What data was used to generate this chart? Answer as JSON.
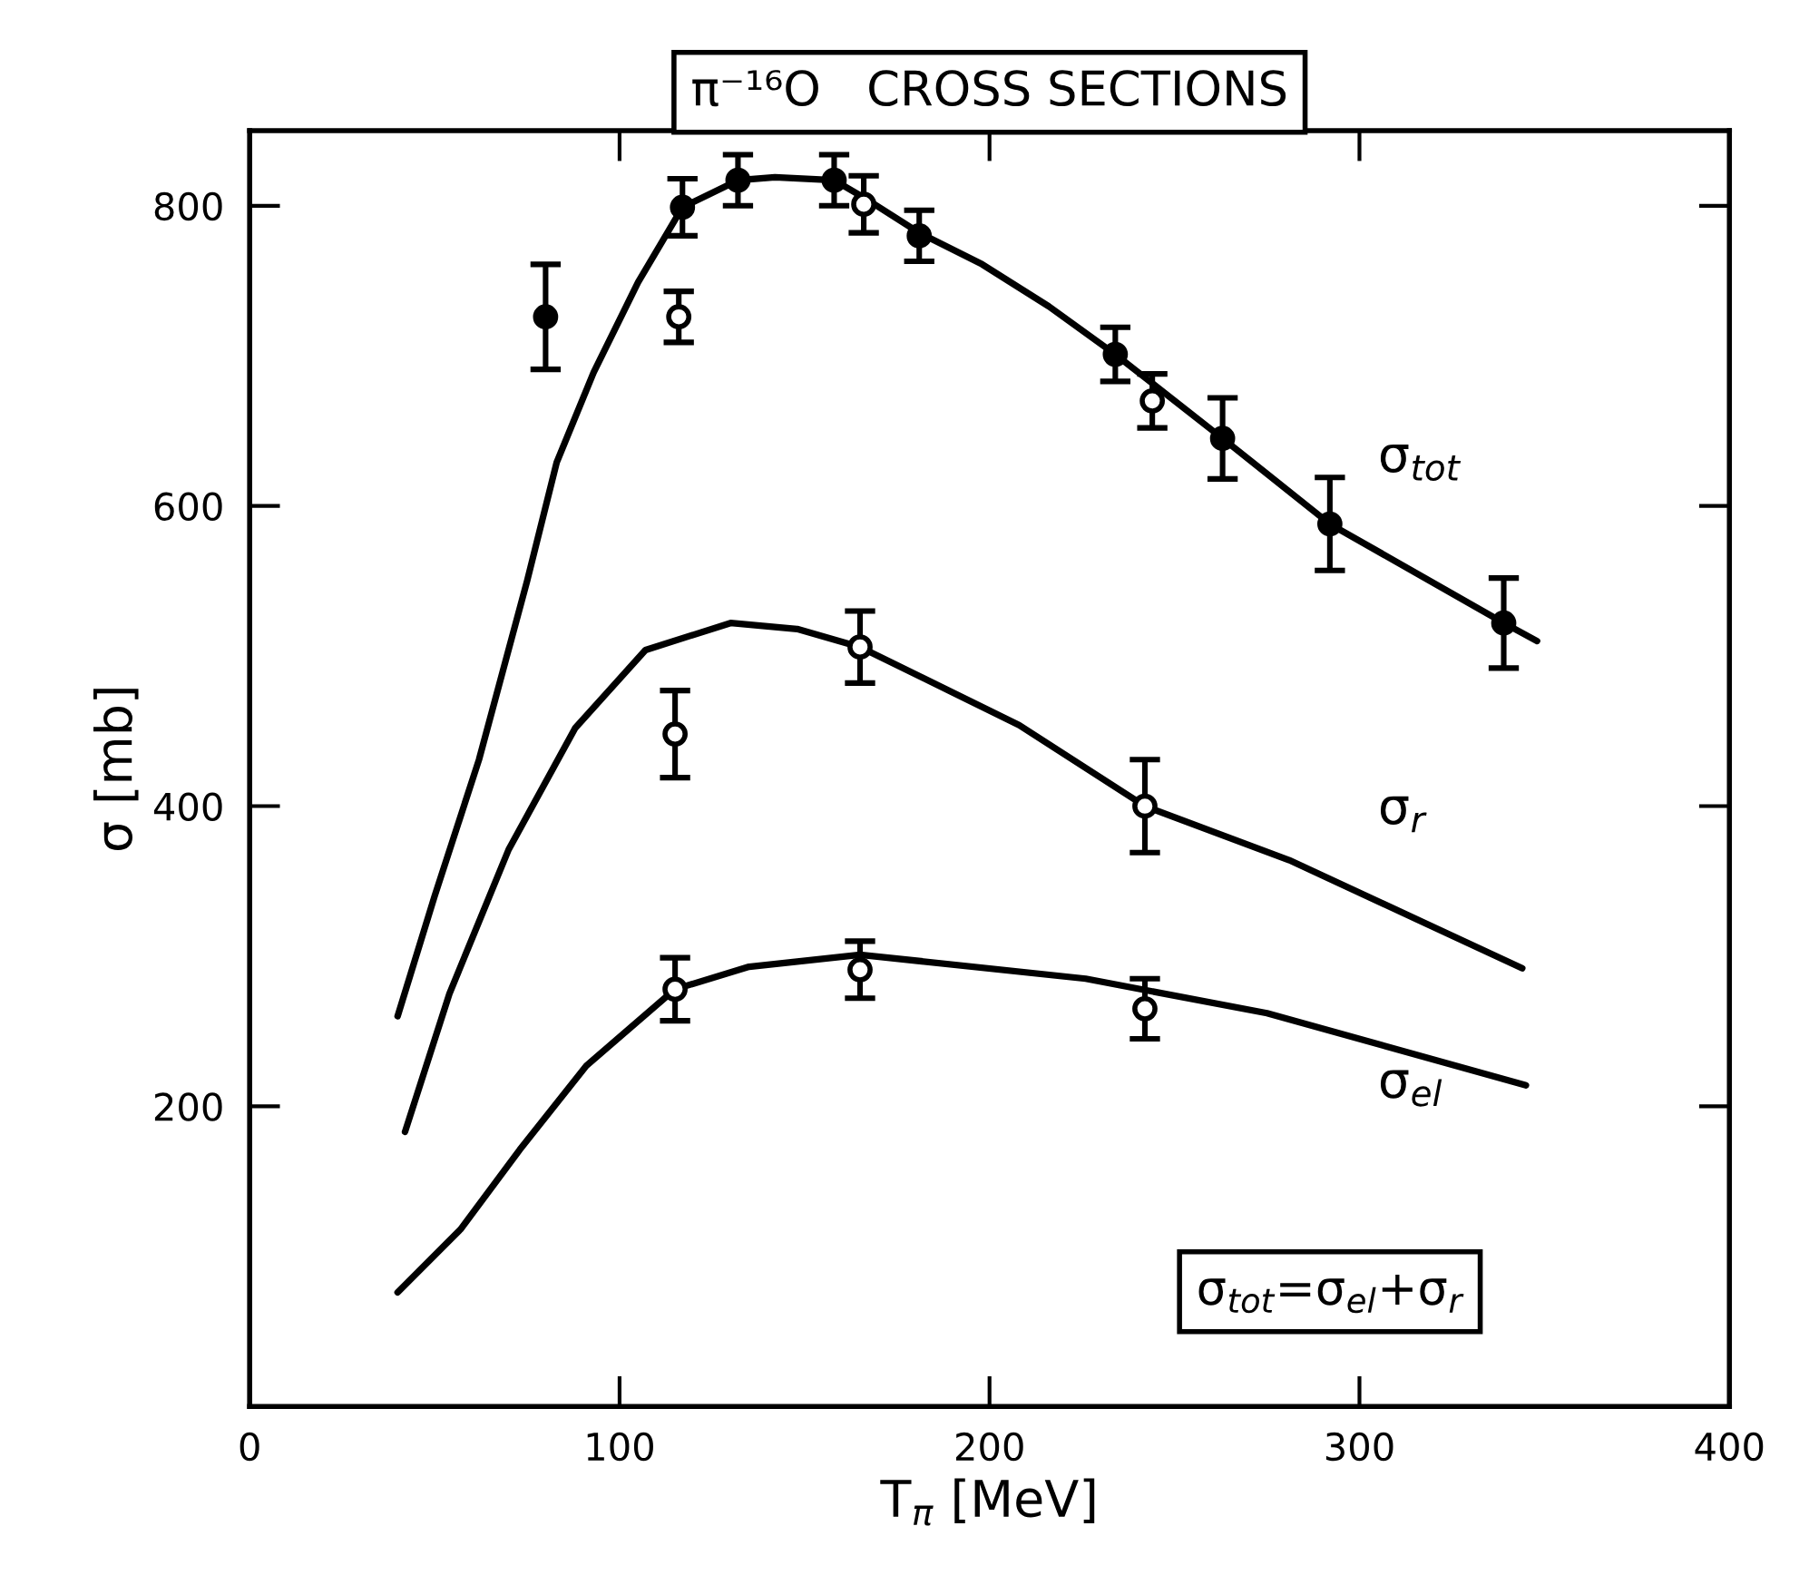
{
  "chart_data": {
    "type": "line",
    "title": "π⁻¹⁶O   CROSS SECTIONS",
    "xlabel": "T$_{π}$ [MeV]",
    "ylabel": "σ [mb]",
    "xlim": [
      0,
      400
    ],
    "ylim": [
      0,
      850
    ],
    "xticks": [
      0,
      100,
      200,
      300,
      400
    ],
    "yticks": [
      200,
      400,
      600,
      800
    ],
    "grid": false,
    "legend": false,
    "annotations": [
      "σ$_{tot}$=σ$_{el}$+σ$_{r}$"
    ],
    "series": [
      {
        "name": "σ$_{tot}$",
        "color": "#000000",
        "marker": "none",
        "x": [
          40,
          50,
          62,
          75,
          83,
          93,
          105,
          117,
          132,
          142,
          158,
          167,
          181,
          198,
          216,
          234,
          263,
          292,
          339,
          348
        ],
        "values": [
          260,
          340,
          431,
          550,
          629,
          689,
          749,
          799,
          817,
          819,
          817,
          804,
          782,
          761,
          733,
          701,
          645,
          588,
          522,
          510
        ]
      },
      {
        "name": "σ$_{r}$",
        "color": "#000000",
        "marker": "none",
        "x": [
          42,
          54,
          70,
          88,
          107,
          130,
          148,
          165,
          208,
          242,
          281,
          344
        ],
        "values": [
          183,
          275,
          371,
          452,
          504,
          522,
          518,
          506,
          454,
          400,
          364,
          292
        ]
      },
      {
        "name": "σ$_{el}$",
        "color": "#000000",
        "marker": "none",
        "x": [
          40,
          57,
          73,
          91,
          115,
          135,
          165,
          226,
          275,
          345
        ],
        "values": [
          76,
          118,
          171,
          227,
          278,
          293,
          301,
          285,
          262,
          214
        ]
      },
      {
        "type": "scatter",
        "color": "#000000",
        "marker": "circle",
        "x": [
          80,
          117,
          132,
          158,
          181,
          234,
          263,
          292,
          339
        ],
        "values": [
          726,
          799,
          817,
          817,
          780,
          701,
          645,
          588,
          522
        ],
        "errors": [
          35,
          19,
          17,
          17,
          17,
          18,
          27,
          31,
          30
        ]
      },
      {
        "type": "scatter",
        "color": "#ffffff",
        "marker": "circle",
        "x": [
          116,
          166,
          244
        ],
        "values": [
          726,
          801,
          670
        ],
        "errors": [
          17,
          19,
          18
        ]
      },
      {
        "type": "scatter",
        "color": "#ffffff",
        "marker": "circle",
        "x": [
          115,
          165,
          242
        ],
        "values": [
          448,
          506,
          400
        ],
        "errors": [
          29,
          24,
          31
        ]
      },
      {
        "type": "scatter",
        "color": "#ffffff",
        "marker": "circle",
        "x": [
          115,
          165,
          242
        ],
        "values": [
          278,
          291,
          265
        ],
        "errors": [
          21,
          19,
          20
        ]
      }
    ]
  }
}
